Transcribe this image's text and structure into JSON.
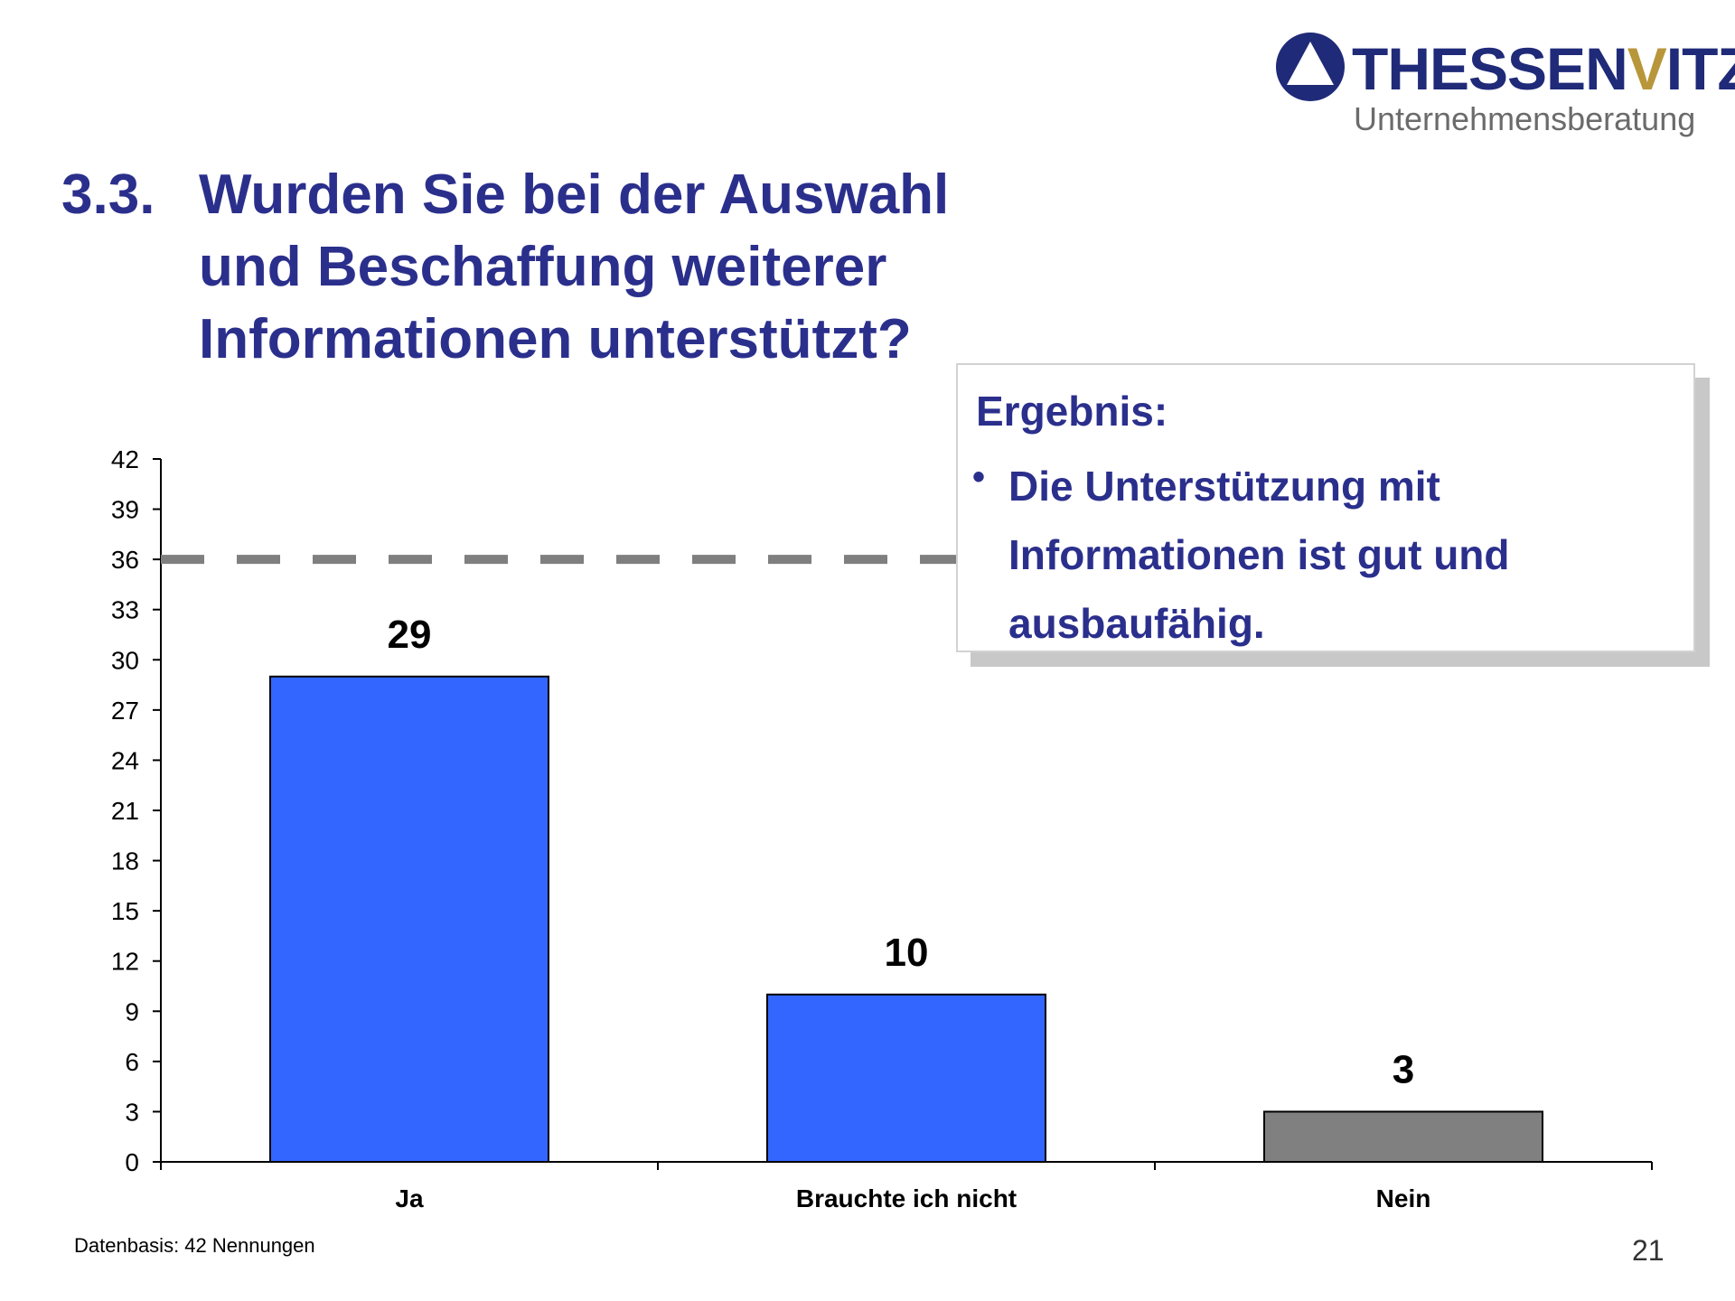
{
  "logo": {
    "name_part1": "THESSEN",
    "name_accent": "V",
    "name_part2": "ITZ",
    "subtitle": "Unternehmensberatung"
  },
  "title": {
    "number": "3.3.",
    "text": "Wurden Sie bei der Auswahl und Beschaffung weiterer Informationen unterstützt?"
  },
  "result_box": {
    "heading": "Ergebnis:",
    "bullet": "•",
    "text": "Die Unterstützung mit Informationen ist gut und ausbaufähig."
  },
  "chart_data": {
    "type": "bar",
    "categories": [
      "Ja",
      "Brauchte ich nicht",
      "Nein"
    ],
    "values": [
      29,
      10,
      3
    ],
    "data_labels": [
      "29",
      "10",
      "3"
    ],
    "bar_colors": [
      "#3366ff",
      "#3366ff",
      "#808080"
    ],
    "ylim": [
      0,
      42
    ],
    "yticks": [
      0,
      3,
      6,
      9,
      12,
      15,
      18,
      21,
      24,
      27,
      30,
      33,
      36,
      39,
      42
    ],
    "reference_line": {
      "value": 36,
      "style": "dashed",
      "color": "#7f7f7f"
    },
    "grid": false,
    "legend": "none"
  },
  "footnote": "Datenbasis: 42 Nennungen",
  "page_number": "21"
}
